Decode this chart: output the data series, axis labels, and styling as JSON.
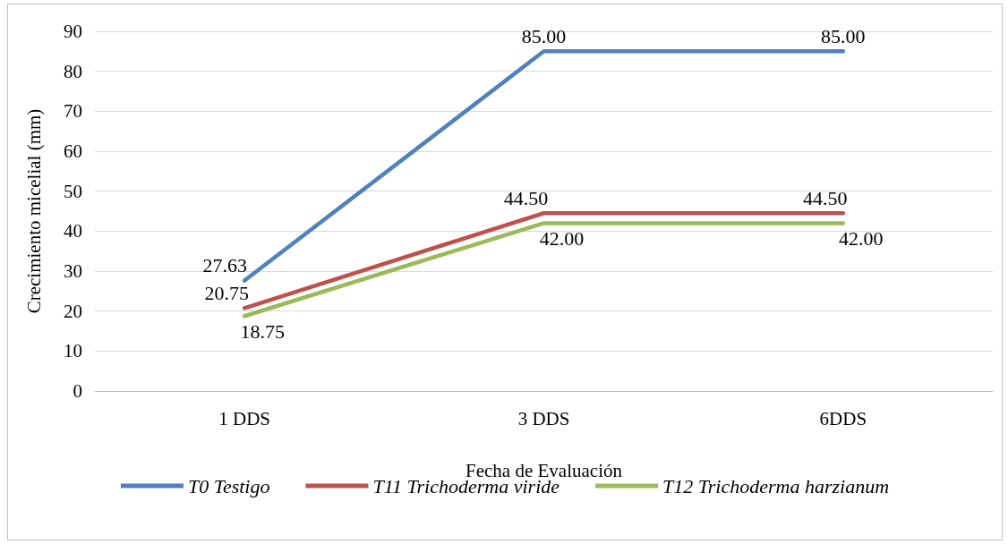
{
  "chart_data": {
    "type": "line",
    "xlabel": "Fecha de Evaluación",
    "ylabel": "Crecimiento micelial (mm)",
    "categories": [
      "1 DDS",
      "3 DDS",
      "6DDS"
    ],
    "series": [
      {
        "name": "T0 Testigo",
        "color": "#4f81bd",
        "values": [
          27.63,
          85.0,
          85.0
        ],
        "value_labels": [
          "27.63",
          "85.00",
          "85.00"
        ]
      },
      {
        "name": "T11 Trichoderma viride",
        "color": "#c0504d",
        "values": [
          20.75,
          44.5,
          44.5
        ],
        "value_labels": [
          "20.75",
          "44.50",
          "44.50"
        ]
      },
      {
        "name": "T12 Trichoderma harzianum",
        "color": "#9bbb59",
        "values": [
          18.75,
          42.0,
          42.0
        ],
        "value_labels": [
          "18.75",
          "42.00",
          "42.00"
        ]
      }
    ],
    "ylim": [
      0,
      90
    ],
    "yticks": [
      0,
      10,
      20,
      30,
      40,
      50,
      60,
      70,
      80,
      90
    ],
    "grid": "y",
    "legend": "bottom",
    "marker": "none",
    "line_style": "solid"
  }
}
